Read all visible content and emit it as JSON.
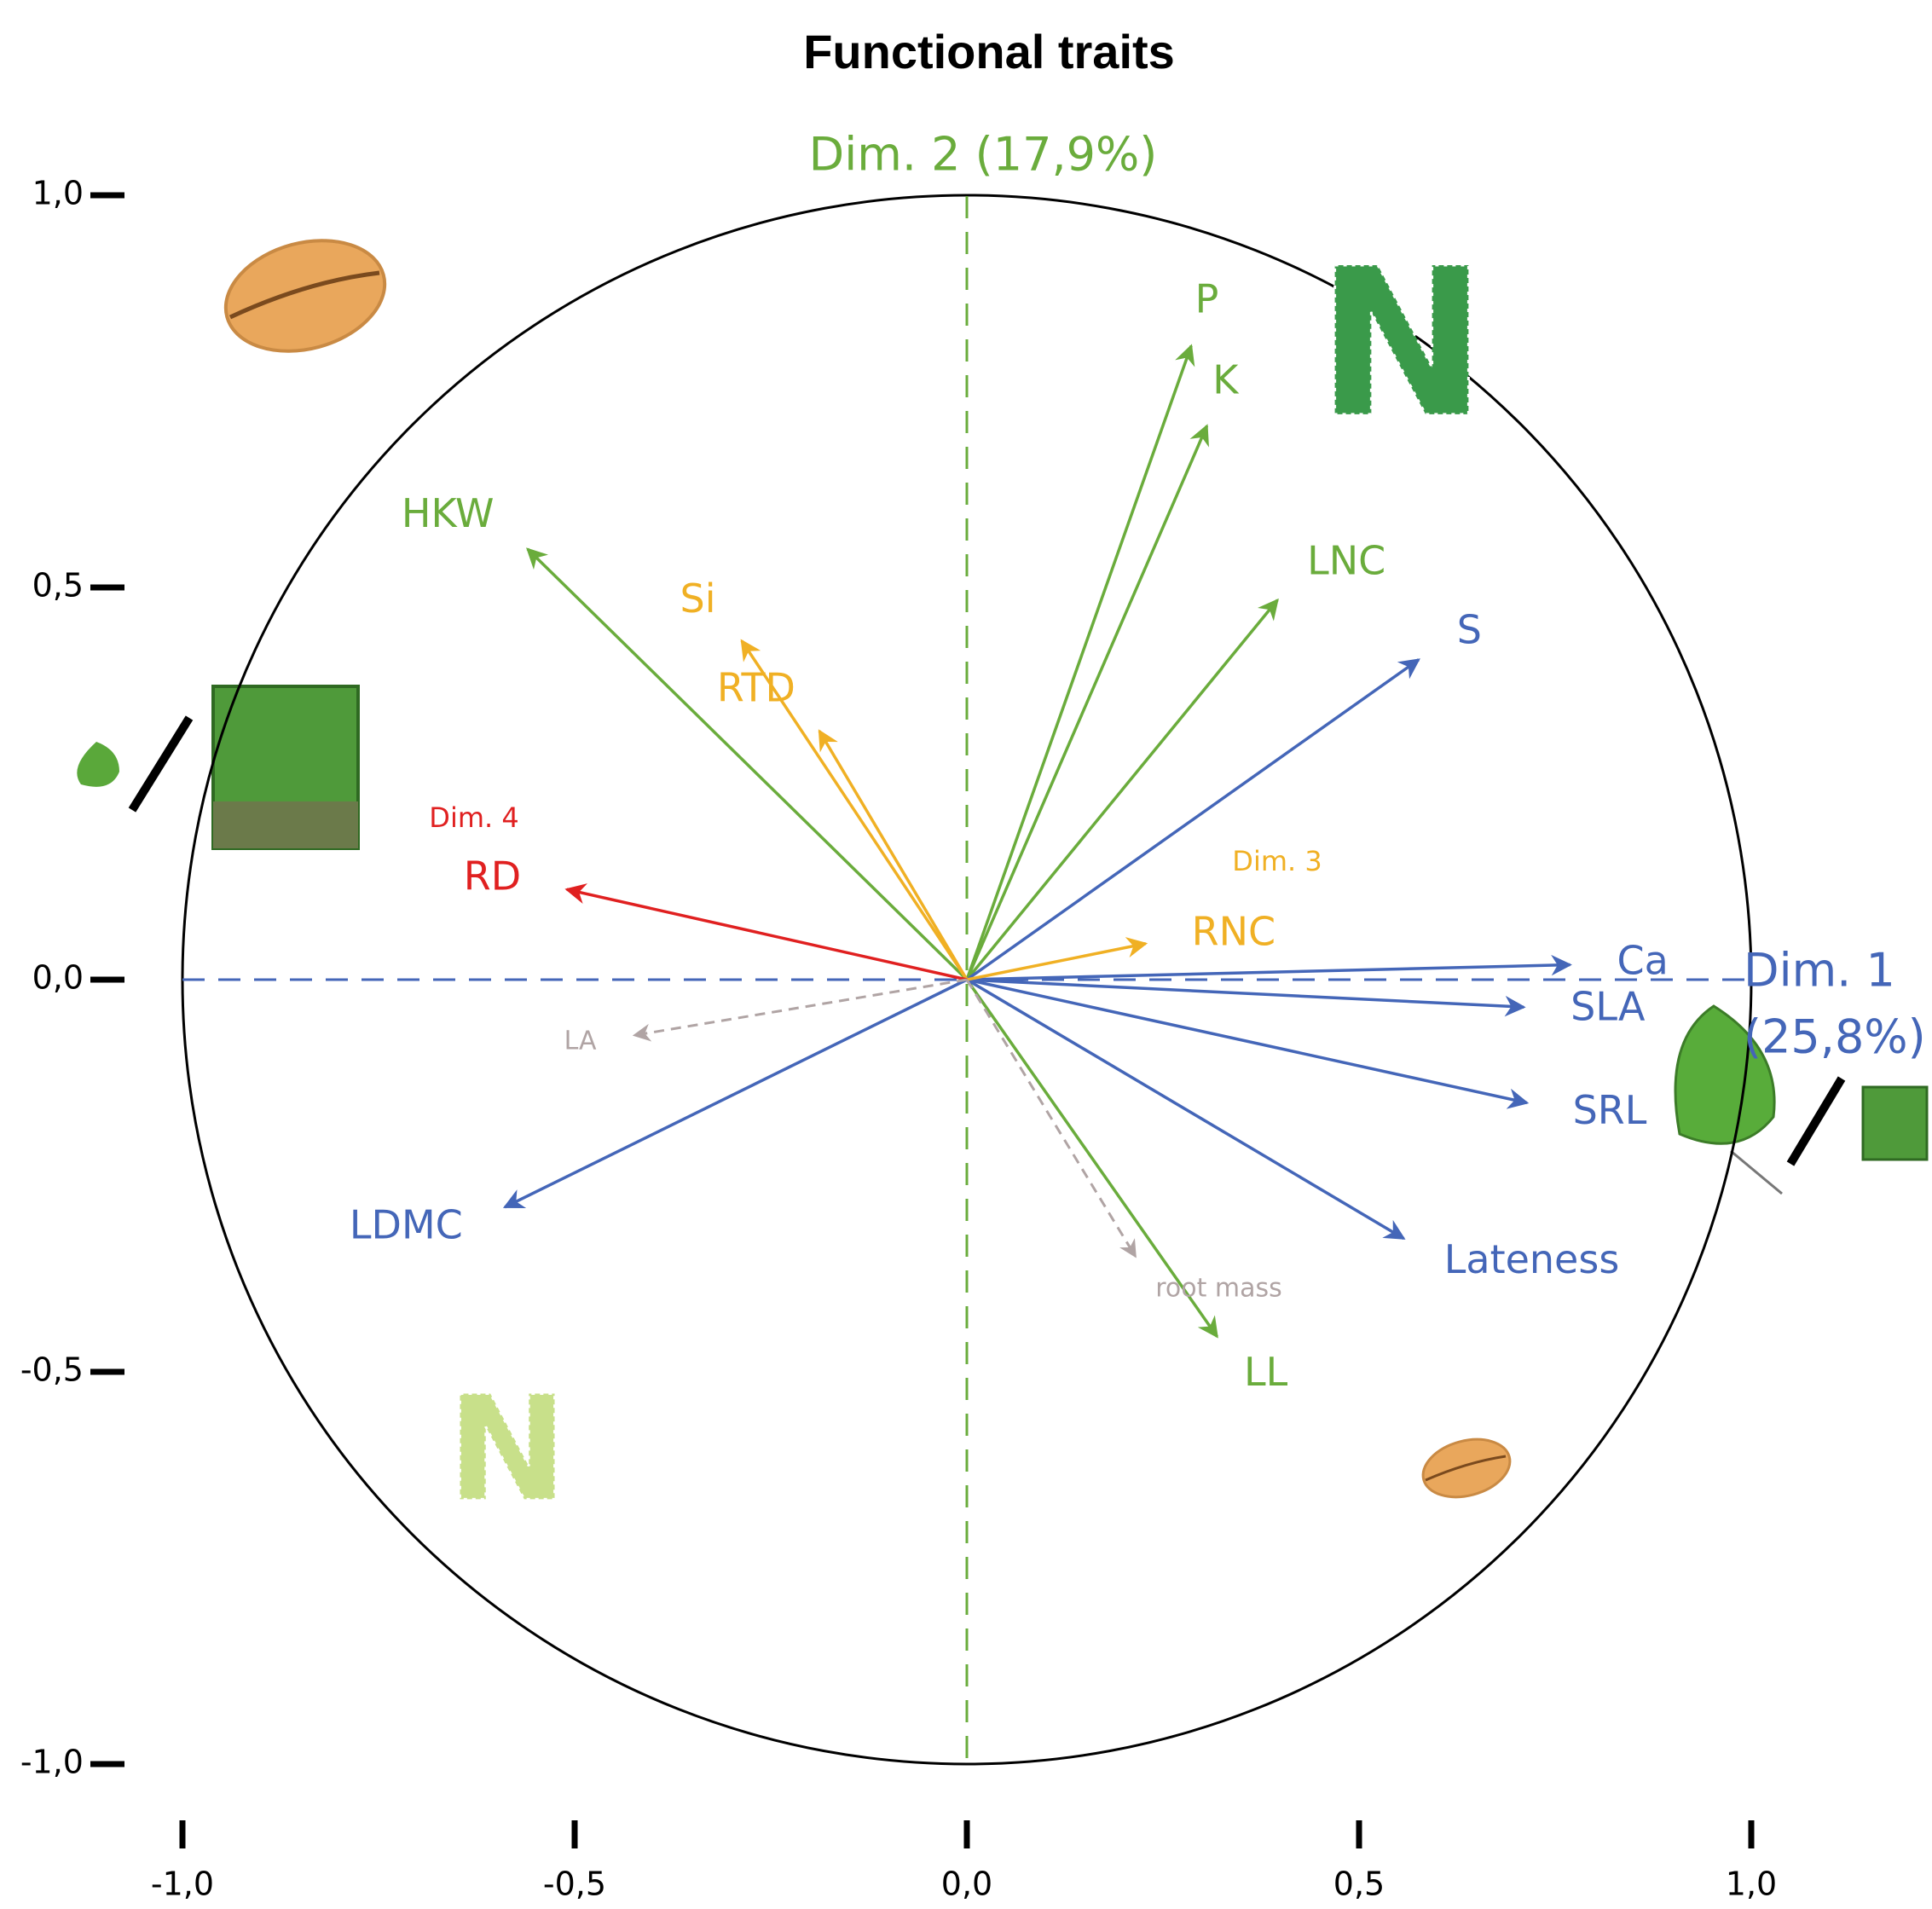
{
  "chart_data": {
    "type": "biplot",
    "title": "Functional traits",
    "xlabel": [
      "Dim. 1",
      "(25,8%)"
    ],
    "xlabel_color": "#4466b8",
    "ylabel": "Dim. 2 (17,9%)",
    "ylabel_color": "#6aac3c",
    "xlim": [
      -1.0,
      1.0
    ],
    "ylim": [
      -1.0,
      1.0
    ],
    "xticks": [
      {
        "value": -1.0,
        "label": "-1,0"
      },
      {
        "value": -0.5,
        "label": "-0,5"
      },
      {
        "value": 0,
        "label": "0,0"
      },
      {
        "value": 0.5,
        "label": "0,5"
      },
      {
        "value": 1.0,
        "label": "1,0"
      }
    ],
    "yticks": [
      {
        "value": 1.0,
        "label": "1,0"
      },
      {
        "value": 0.5,
        "label": "0,5"
      },
      {
        "value": 0,
        "label": "0,0"
      },
      {
        "value": -0.5,
        "label": "-0,5"
      },
      {
        "value": -1.0,
        "label": "-1,0"
      }
    ],
    "annotations": [
      {
        "text": "Dim. 4",
        "color": "#e02020"
      },
      {
        "text": "Dim. 3",
        "color": "#f0b024"
      },
      {
        "text": "N",
        "color": "#3a9a4a"
      },
      {
        "text": "N",
        "color": "#c8e08a"
      }
    ],
    "series": [
      {
        "name": "P",
        "color": "#6aac3c",
        "x": 0.286,
        "y": 0.808
      },
      {
        "name": "K",
        "color": "#6aac3c",
        "x": 0.306,
        "y": 0.706
      },
      {
        "name": "LNC",
        "color": "#6aac3c",
        "x": 0.396,
        "y": 0.484
      },
      {
        "name": "HKW",
        "color": "#6aac3c",
        "x": -0.56,
        "y": 0.549
      },
      {
        "name": "LL",
        "color": "#6aac3c",
        "x": 0.319,
        "y": -0.455
      },
      {
        "name": "S",
        "color": "#4466b8",
        "x": 0.576,
        "y": 0.408
      },
      {
        "name": "Ca",
        "color": "#4466b8",
        "x": 0.769,
        "y": 0.019
      },
      {
        "name": "SLA",
        "color": "#4466b8",
        "x": 0.71,
        "y": -0.035
      },
      {
        "name": "SRL",
        "color": "#4466b8",
        "x": 0.714,
        "y": -0.157
      },
      {
        "name": "Lateness",
        "color": "#4466b8",
        "x": 0.557,
        "y": -0.33
      },
      {
        "name": "LDMC",
        "color": "#4466b8",
        "x": -0.589,
        "y": -0.29
      },
      {
        "name": "Si",
        "color": "#f0b024",
        "x": -0.287,
        "y": 0.432
      },
      {
        "name": "RTD",
        "color": "#f0b024",
        "x": -0.188,
        "y": 0.317
      },
      {
        "name": "RNC",
        "color": "#f0b024",
        "x": 0.228,
        "y": 0.046
      },
      {
        "name": "RD",
        "color": "#e02020",
        "x": -0.51,
        "y": 0.115
      },
      {
        "name": "LA",
        "color": "#b0a4a4",
        "x": -0.424,
        "y": -0.071,
        "style": "dashed"
      },
      {
        "name": "root mass",
        "color": "#b0a4a4",
        "x": 0.215,
        "y": -0.353,
        "style": "dashed"
      }
    ]
  }
}
